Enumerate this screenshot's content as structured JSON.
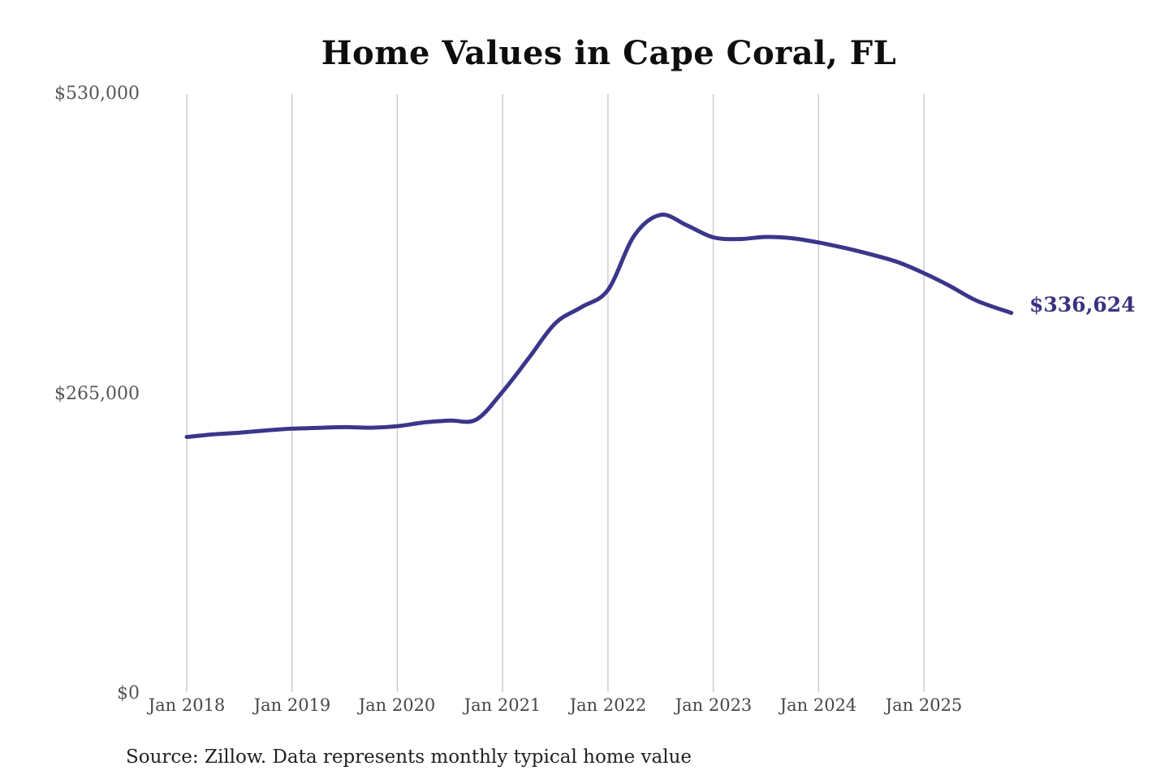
{
  "chart": {
    "title": "Home Values in Cape Coral, FL",
    "end_label": "$336,624",
    "source": "Source: Zillow. Data represents monthly typical home value",
    "line_color": "#3a368a",
    "end_label_color": "#37337f",
    "grid_color": "#c6c6c6"
  },
  "chart_data": {
    "type": "line",
    "title": "Home Values in Cape Coral, FL",
    "grid": "vertical",
    "legend": false,
    "ylim": [
      0,
      530000
    ],
    "xlim": [
      2017.9,
      2026.3
    ],
    "y_ticks": [
      {
        "label": "$0",
        "value": 0
      },
      {
        "label": "$265,000",
        "value": 265000
      },
      {
        "label": "$530,000",
        "value": 530000
      }
    ],
    "x_ticks": [
      {
        "label": "Jan 2018",
        "x": 2018
      },
      {
        "label": "Jan 2019",
        "x": 2019
      },
      {
        "label": "Jan 2020",
        "x": 2020
      },
      {
        "label": "Jan 2021",
        "x": 2021
      },
      {
        "label": "Jan 2022",
        "x": 2022
      },
      {
        "label": "Jan 2023",
        "x": 2023
      },
      {
        "label": "Jan 2024",
        "x": 2024
      },
      {
        "label": "Jan 2025",
        "x": 2025
      }
    ],
    "points": [
      {
        "x": 2018.0,
        "value": 227000
      },
      {
        "x": 2018.25,
        "value": 229300
      },
      {
        "x": 2018.5,
        "value": 230800
      },
      {
        "x": 2018.75,
        "value": 232700
      },
      {
        "x": 2019.0,
        "value": 234300
      },
      {
        "x": 2019.25,
        "value": 235000
      },
      {
        "x": 2019.5,
        "value": 235700
      },
      {
        "x": 2019.75,
        "value": 235200
      },
      {
        "x": 2020.0,
        "value": 236500
      },
      {
        "x": 2020.25,
        "value": 239800
      },
      {
        "x": 2020.5,
        "value": 241500
      },
      {
        "x": 2020.75,
        "value": 242400
      },
      {
        "x": 2021.0,
        "value": 267000
      },
      {
        "x": 2021.25,
        "value": 297000
      },
      {
        "x": 2021.5,
        "value": 327500
      },
      {
        "x": 2021.75,
        "value": 341800
      },
      {
        "x": 2022.0,
        "value": 356900
      },
      {
        "x": 2022.25,
        "value": 405000
      },
      {
        "x": 2022.5,
        "value": 423300
      },
      {
        "x": 2022.75,
        "value": 414000
      },
      {
        "x": 2023.0,
        "value": 403400
      },
      {
        "x": 2023.25,
        "value": 401900
      },
      {
        "x": 2023.5,
        "value": 403800
      },
      {
        "x": 2023.75,
        "value": 402600
      },
      {
        "x": 2024.0,
        "value": 398900
      },
      {
        "x": 2024.25,
        "value": 394000
      },
      {
        "x": 2024.5,
        "value": 388300
      },
      {
        "x": 2024.75,
        "value": 381600
      },
      {
        "x": 2025.0,
        "value": 371800
      },
      {
        "x": 2025.25,
        "value": 360300
      },
      {
        "x": 2025.5,
        "value": 347500
      },
      {
        "x": 2025.83,
        "value": 336624
      }
    ],
    "annotation": {
      "text": "$336,624",
      "x": 2025.83,
      "value": 336624
    }
  }
}
